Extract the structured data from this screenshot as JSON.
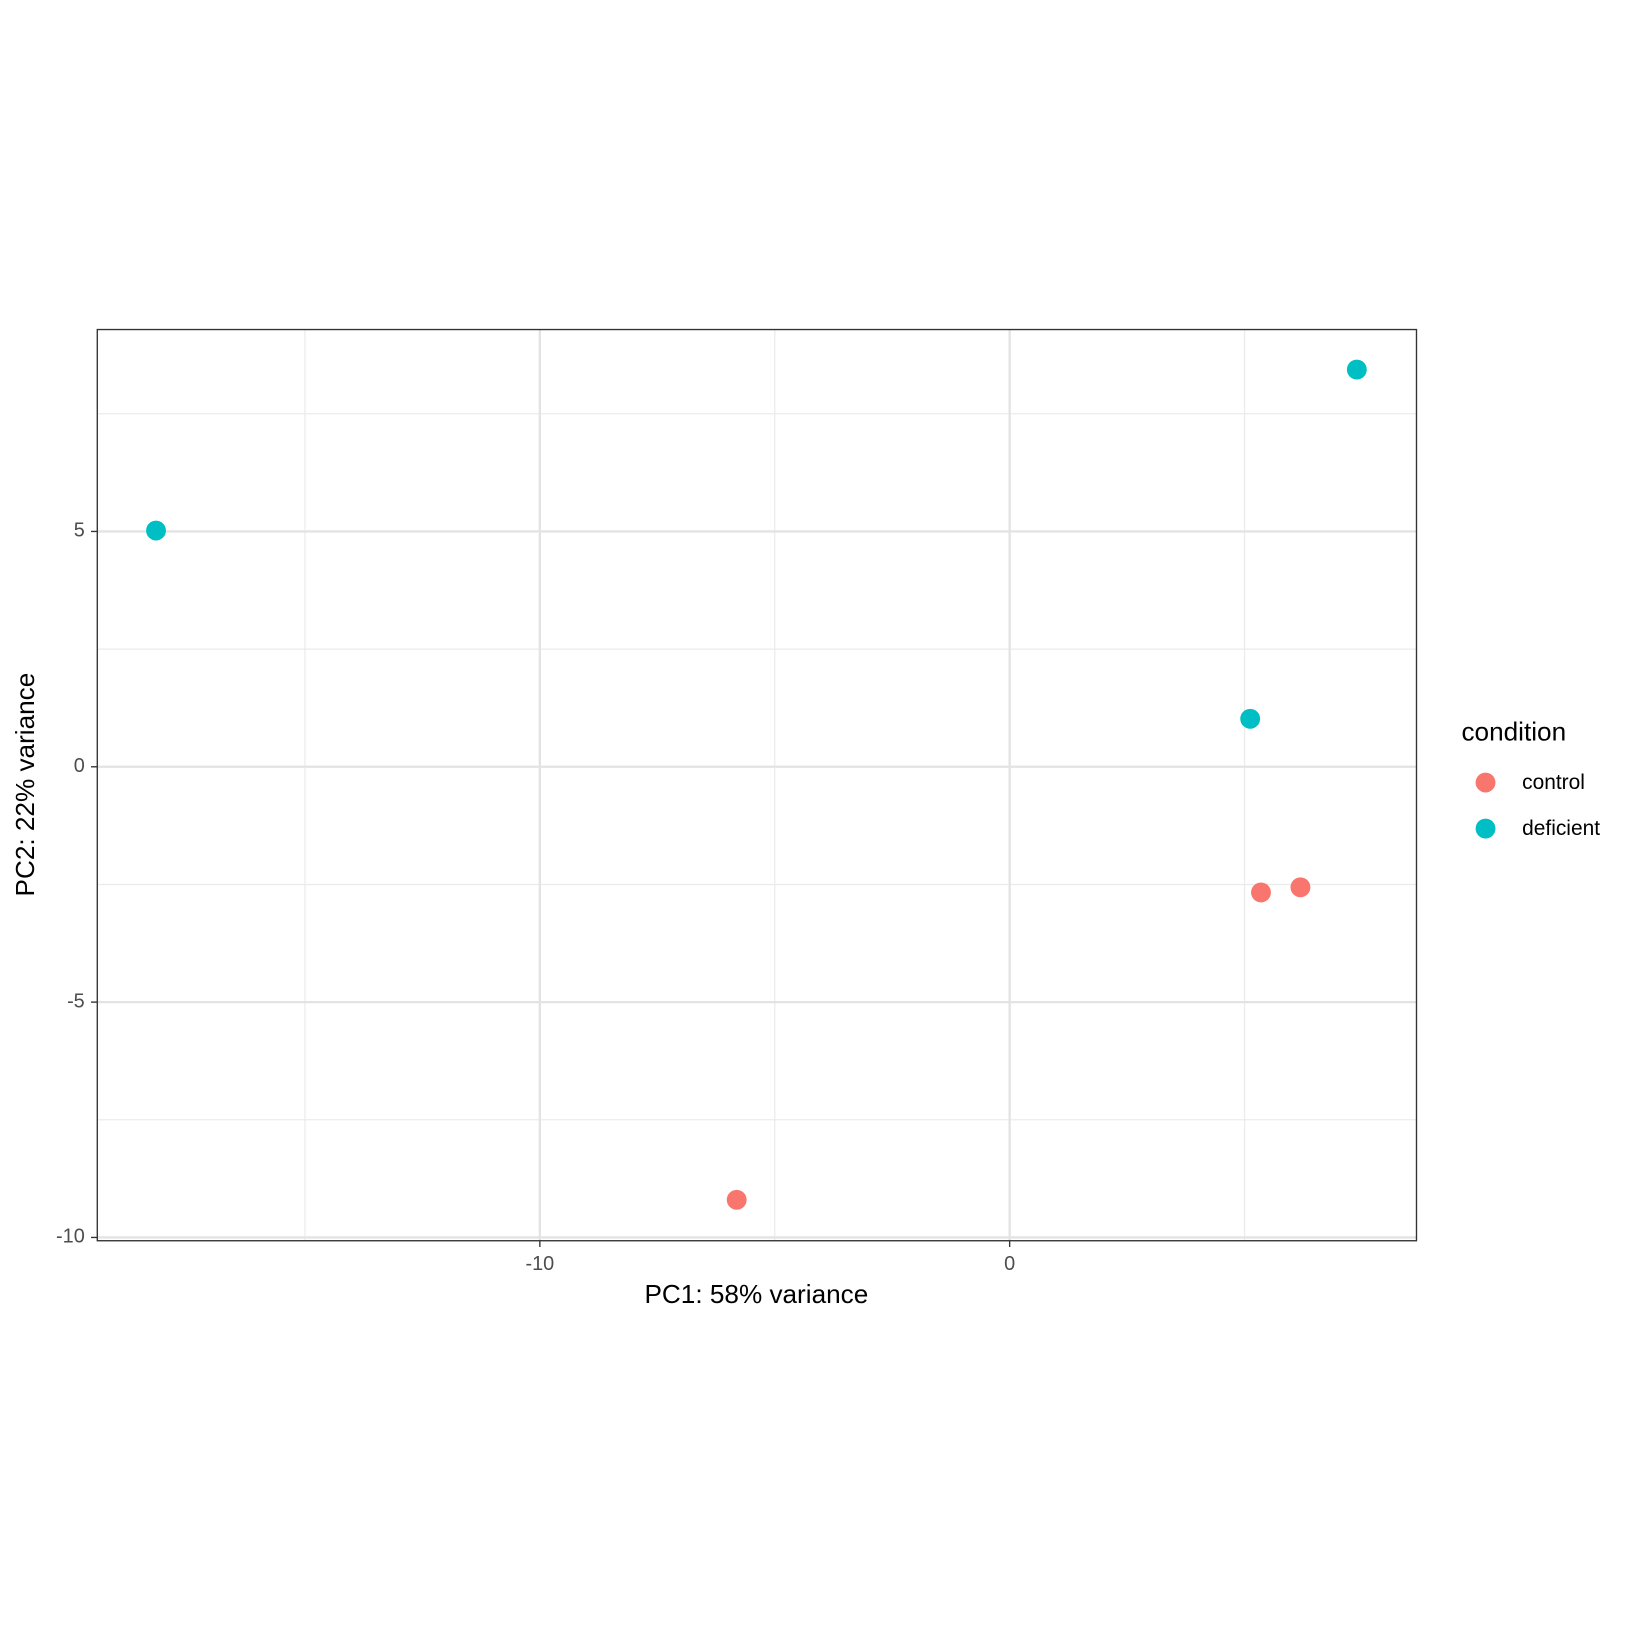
{
  "chart_data": {
    "type": "scatter",
    "xlabel": "PC1: 58% variance",
    "ylabel": "PC2: 22% variance",
    "legend_title": "condition",
    "legend": "right",
    "grid": true,
    "xlim": [
      -19.42,
      8.66
    ],
    "ylim": [
      -10.07,
      9.29
    ],
    "xticks": [
      -10,
      0
    ],
    "yticks": [
      -10,
      -5,
      0,
      5
    ],
    "series": [
      {
        "name": "control",
        "color": "#F8766D",
        "x": [
          -5.81,
          5.35,
          6.19
        ],
        "values": [
          -9.2,
          -2.67,
          -2.56
        ]
      },
      {
        "name": "deficient",
        "color": "#00BFC4",
        "x": [
          -18.17,
          7.39,
          5.12
        ],
        "values": [
          5.02,
          8.44,
          1.02
        ]
      }
    ]
  }
}
